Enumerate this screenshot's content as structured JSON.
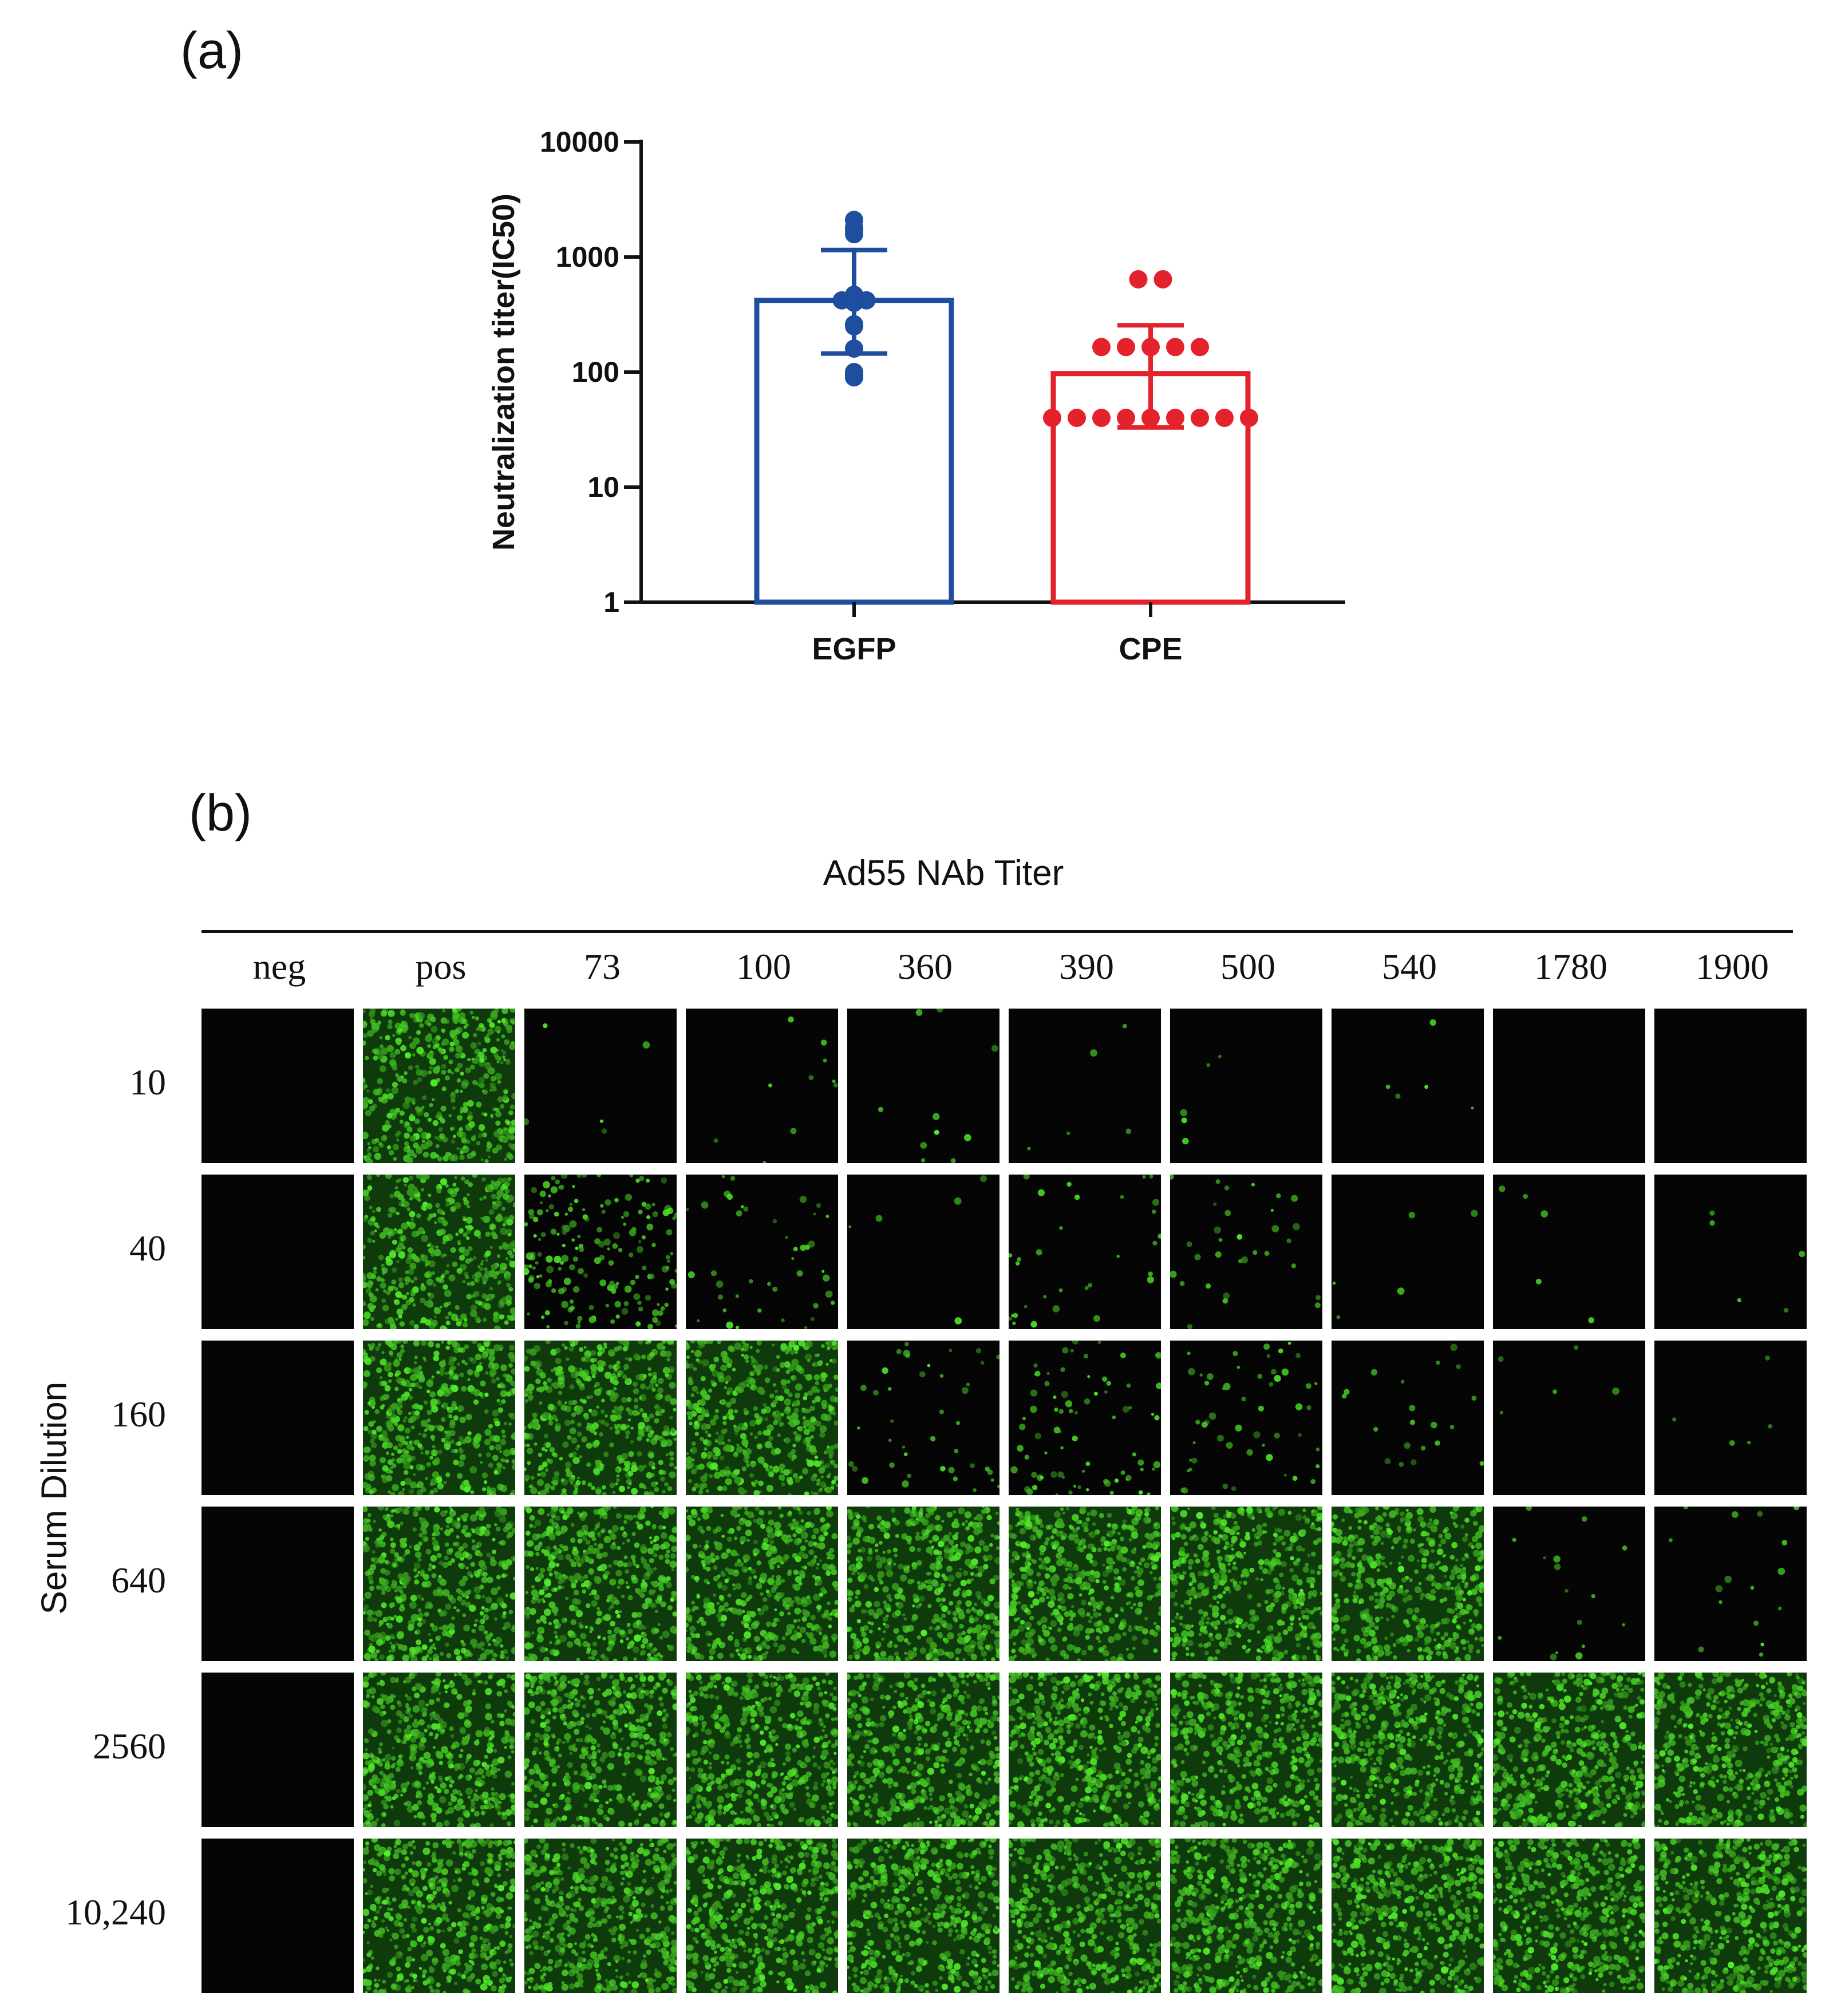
{
  "panel_a": {
    "label": "(a)",
    "chart_data": {
      "type": "bar",
      "ylabel": "Neutralization titer(IC50)",
      "yscale": "log",
      "ylim": [
        1,
        10000
      ],
      "yticks": [
        "1",
        "10",
        "100",
        "1000",
        "10000"
      ],
      "categories": [
        "EGFP",
        "CPE"
      ],
      "series": [
        {
          "category": "EGFP",
          "color": "#1f4e9e",
          "mean": 420,
          "error_low": 145,
          "error_high": 1150,
          "points": [
            2100,
            1800,
            1580,
            1700,
            470,
            420,
            410,
            430,
            400,
            420,
            250,
            260,
            160,
            95,
            90,
            100
          ]
        },
        {
          "category": "CPE",
          "color": "#e3222b",
          "mean": 97,
          "error_low": 33,
          "error_high": 255,
          "points": [
            640,
            640,
            165,
            165,
            165,
            165,
            165,
            40,
            40,
            40,
            40,
            40,
            40,
            40,
            40,
            40
          ]
        }
      ]
    }
  },
  "panel_b": {
    "label": "(b)",
    "title": "Ad55 NAb Titer",
    "ylabel": "Serum Dilution",
    "columns": [
      "neg",
      "pos",
      "73",
      "100",
      "360",
      "390",
      "500",
      "540",
      "1780",
      "1900"
    ],
    "rows": [
      "10",
      "40",
      "160",
      "640",
      "2560",
      "10,240"
    ],
    "fluorescence_level": [
      [
        0,
        0.9,
        0.01,
        0.02,
        0.02,
        0.01,
        0.01,
        0.01,
        0,
        0
      ],
      [
        0,
        0.9,
        0.35,
        0.08,
        0.01,
        0.06,
        0.06,
        0.01,
        0.01,
        0.01
      ],
      [
        0,
        0.95,
        0.9,
        0.95,
        0.08,
        0.15,
        0.1,
        0.04,
        0.01,
        0.01
      ],
      [
        0,
        0.95,
        0.95,
        0.95,
        0.95,
        0.95,
        0.9,
        0.9,
        0.03,
        0.03
      ],
      [
        0,
        0.95,
        0.95,
        0.95,
        0.95,
        0.95,
        0.95,
        0.95,
        0.95,
        0.95
      ],
      [
        0,
        0.95,
        0.95,
        0.95,
        0.95,
        0.95,
        0.95,
        0.95,
        0.95,
        0.95
      ]
    ],
    "colors": {
      "cell_background": "#050505",
      "fluorescence": "#4cd62a"
    }
  }
}
